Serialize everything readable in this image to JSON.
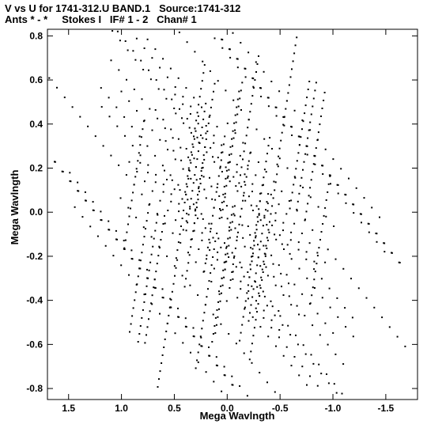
{
  "header": {
    "line1": "V vs U for 1741-312.U BAND.1   Source:1741-312",
    "line2": "Ants * - *     Stokes I   IF# 1 - 2   Chan# 1"
  },
  "chart_data": {
    "type": "scatter",
    "title": "V vs U for 1741-312.U BAND.1   Source:1741-312",
    "subtitle": "Ants * - *     Stokes I   IF# 1 - 2   Chan# 1",
    "xlabel": "Mega Wavlngth",
    "ylabel": "Mega Wavlngth",
    "xlim": [
      1.7,
      -1.8
    ],
    "ylim": [
      -0.85,
      0.83
    ],
    "x_reversed": true,
    "xticks": [
      1.5,
      1.0,
      0.5,
      0.0,
      -0.5,
      -1.0,
      -1.5
    ],
    "xtick_labels": [
      "1.5",
      "1.0",
      "0.5",
      "0.0",
      "-0.5",
      "-1.0",
      "-1.5"
    ],
    "yticks": [
      0.8,
      0.6,
      0.4,
      0.2,
      0.0,
      -0.2,
      -0.4,
      -0.6,
      -0.8
    ],
    "ytick_labels": [
      "0.8",
      "0.6",
      "0.4",
      "0.2",
      "0.0",
      "-0.2",
      "-0.4",
      "-0.6",
      "-0.8"
    ],
    "grid": false,
    "marker_color": "#000000",
    "sampling": {
      "track_a_du": [
        0.073,
        0.044
      ],
      "track_b_du": [
        -0.0115,
        0.036
      ],
      "track_a_steps": [
        -12,
        11
      ],
      "track_b_steps": [
        -8,
        8
      ]
    },
    "tracks": [
      [
        -0.125,
        -0.02
      ],
      [
        -0.21,
        -0.295
      ],
      [
        -0.31,
        0.05
      ],
      [
        -0.05,
        0.3
      ],
      [
        0.39,
        0.08
      ],
      [
        0.205,
        -0.42
      ],
      [
        0.685,
        -0.305
      ],
      [
        0.83,
        -0.255
      ],
      [
        -0.75,
        0.3
      ],
      [
        -0.565,
        0.505
      ],
      [
        0.305,
        0.38
      ],
      [
        0.88,
        0.125
      ],
      [
        0.295,
        0.205
      ],
      [
        0.02,
        -0.26
      ]
    ]
  }
}
